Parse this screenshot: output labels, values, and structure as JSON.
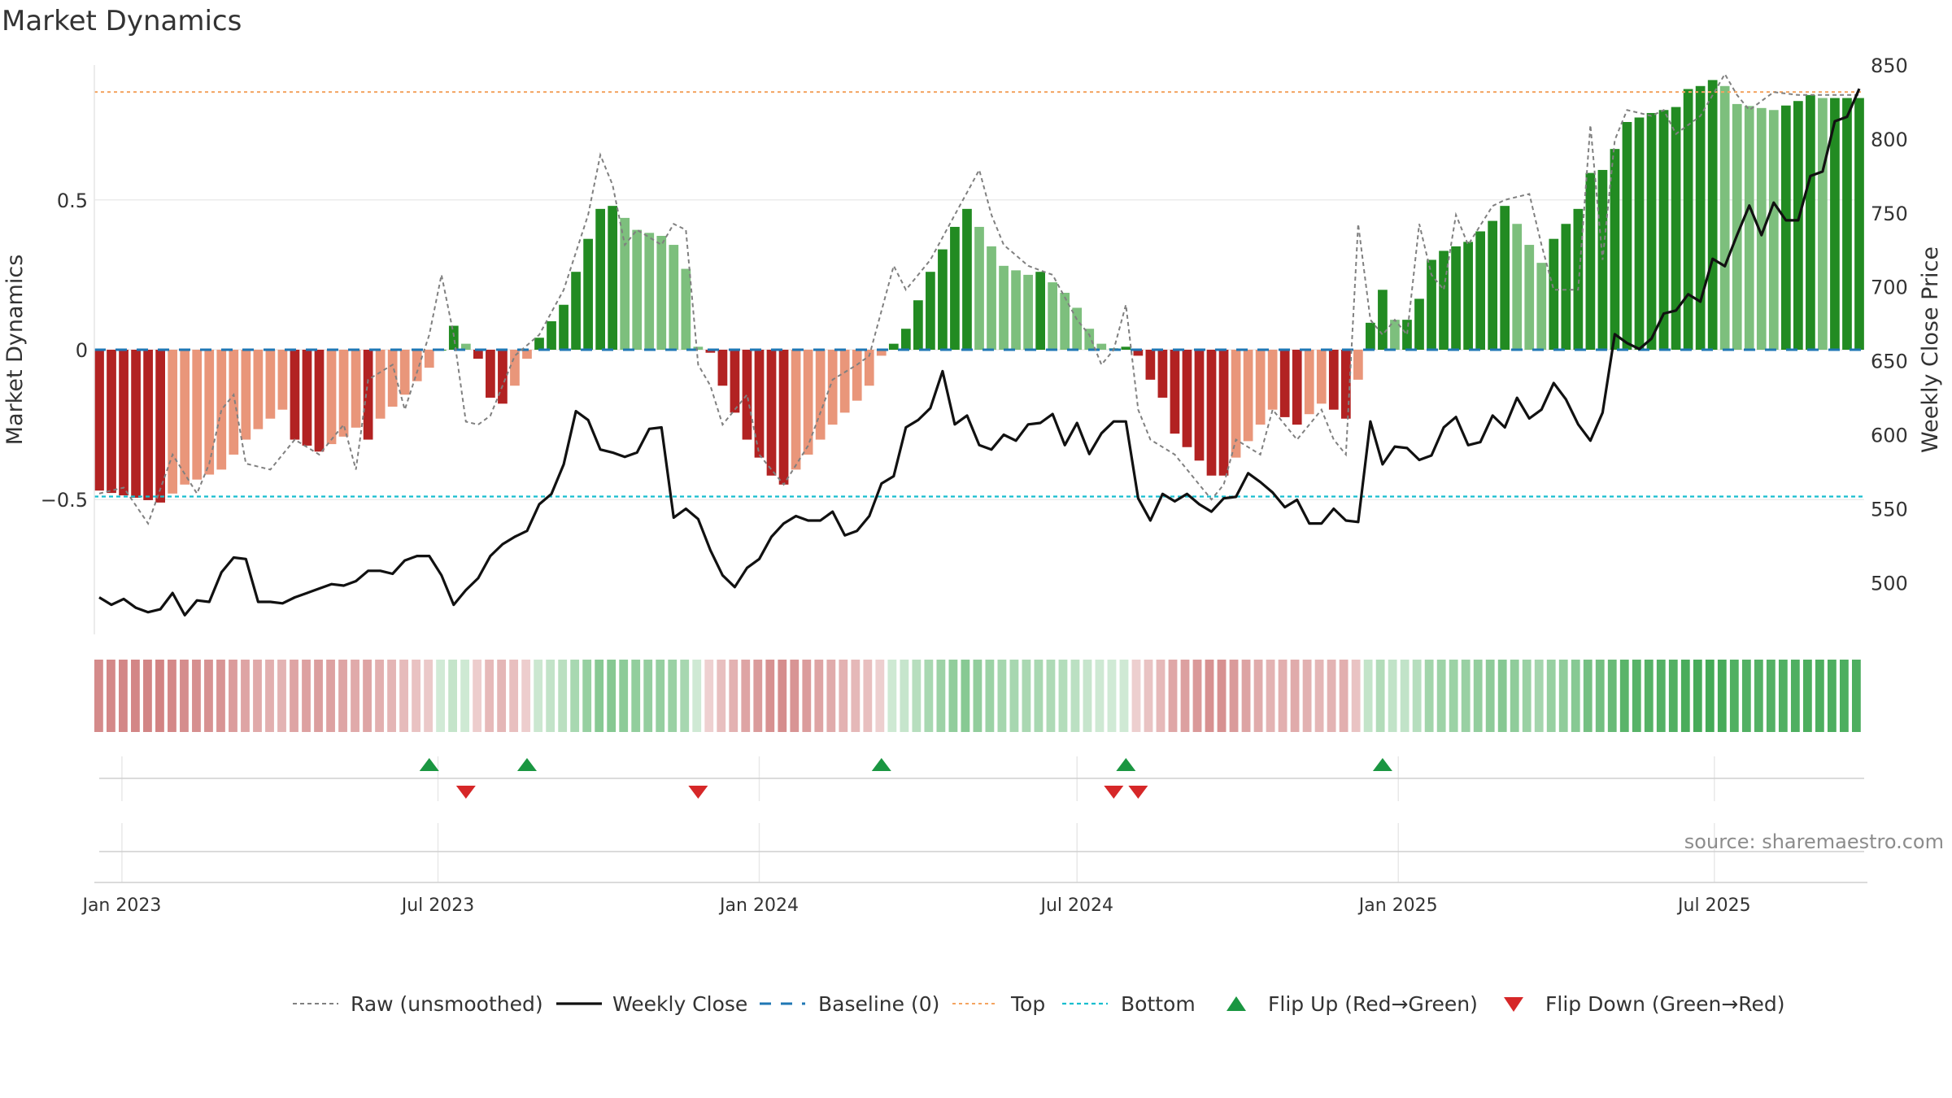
{
  "page_title": "Market Dynamics",
  "source_label": "source: sharemaestro.com",
  "colors": {
    "strong_green": "#228b22",
    "light_green": "#7dbf7d",
    "strong_red": "#b22222",
    "light_red": "#e9967a",
    "raw": "#808080",
    "close": "#111111",
    "baseline": "#1f77b4",
    "top": "#f4a460",
    "bottom": "#17becf",
    "flip_up": "#1a9641",
    "flip_down": "#d62728"
  },
  "chart_data": {
    "type": "bar",
    "title": "Market Dynamics",
    "ylabel": "Market Dynamics",
    "ylabel_right": "Weekly Close Price",
    "ylim": [
      -0.95,
      0.95
    ],
    "ylim_right": [
      465,
      850
    ],
    "yticks": [
      -0.5,
      0,
      0.5
    ],
    "ytick_labels": [
      "−0.5",
      "0",
      "0.5"
    ],
    "yticks_right": [
      500,
      550,
      600,
      650,
      700,
      750,
      800,
      850
    ],
    "ytick_labels_right": [
      "500",
      "550",
      "600",
      "650",
      "700",
      "750",
      "800",
      "850"
    ],
    "top_level": 0.86,
    "bottom_level": -0.49,
    "baseline": 0,
    "start_date": "2022-12-19",
    "weeks": 145,
    "x_ticks": [
      {
        "date": "2023-01-01",
        "label": "Jan 2023"
      },
      {
        "date": "2023-07-01",
        "label": "Jul 2023"
      },
      {
        "date": "2024-01-01",
        "label": "Jan 2024"
      },
      {
        "date": "2024-07-01",
        "label": "Jul 2024"
      },
      {
        "date": "2025-01-01",
        "label": "Jan 2025"
      },
      {
        "date": "2025-07-01",
        "label": "Jul 2025"
      }
    ],
    "dynamics_anchors": [
      [
        0,
        -0.47
      ],
      [
        5,
        -0.51
      ],
      [
        7,
        -0.45
      ],
      [
        10,
        -0.4
      ],
      [
        12,
        -0.3
      ],
      [
        14,
        -0.23
      ],
      [
        15,
        -0.2
      ],
      [
        16,
        -0.3
      ],
      [
        18,
        -0.34
      ],
      [
        20,
        -0.29
      ],
      [
        21,
        -0.26
      ],
      [
        22,
        -0.3
      ],
      [
        23,
        -0.23
      ],
      [
        25,
        -0.15
      ],
      [
        27,
        -0.06
      ],
      [
        28,
        0.0
      ],
      [
        29,
        0.08
      ],
      [
        30,
        0.02
      ],
      [
        31,
        -0.03
      ],
      [
        32,
        -0.16
      ],
      [
        33,
        -0.18
      ],
      [
        34,
        -0.12
      ],
      [
        35,
        -0.03
      ],
      [
        36,
        0.04
      ],
      [
        38,
        0.15
      ],
      [
        40,
        0.37
      ],
      [
        41,
        0.47
      ],
      [
        42,
        0.48
      ],
      [
        44,
        0.4
      ],
      [
        46,
        0.38
      ],
      [
        47,
        0.35
      ],
      [
        48,
        0.27
      ],
      [
        49,
        0.01
      ],
      [
        50,
        -0.01
      ],
      [
        51,
        -0.12
      ],
      [
        53,
        -0.3
      ],
      [
        55,
        -0.42
      ],
      [
        56,
        -0.45
      ],
      [
        58,
        -0.35
      ],
      [
        60,
        -0.25
      ],
      [
        62,
        -0.17
      ],
      [
        63,
        -0.12
      ],
      [
        64,
        -0.02
      ],
      [
        65,
        0.02
      ],
      [
        66,
        0.07
      ],
      [
        68,
        0.26
      ],
      [
        70,
        0.41
      ],
      [
        71,
        0.47
      ],
      [
        72,
        0.41
      ],
      [
        74,
        0.28
      ],
      [
        76,
        0.25
      ],
      [
        77,
        0.26
      ],
      [
        79,
        0.19
      ],
      [
        80,
        0.14
      ],
      [
        81,
        0.07
      ],
      [
        82,
        0.02
      ],
      [
        83,
        0.005
      ],
      [
        84,
        0.01
      ],
      [
        85,
        -0.02
      ],
      [
        86,
        -0.1
      ],
      [
        87,
        -0.16
      ],
      [
        88,
        -0.28
      ],
      [
        90,
        -0.37
      ],
      [
        91,
        -0.42
      ],
      [
        92,
        -0.42
      ],
      [
        93,
        -0.36
      ],
      [
        95,
        -0.25
      ],
      [
        96,
        -0.2
      ],
      [
        98,
        -0.25
      ],
      [
        100,
        -0.18
      ],
      [
        101,
        -0.2
      ],
      [
        102,
        -0.23
      ],
      [
        103,
        -0.1
      ],
      [
        104,
        0.09
      ],
      [
        105,
        0.2
      ],
      [
        106,
        0.1
      ],
      [
        107,
        0.1
      ],
      [
        108,
        0.17
      ],
      [
        109,
        0.3
      ],
      [
        110,
        0.33
      ],
      [
        112,
        0.36
      ],
      [
        114,
        0.43
      ],
      [
        115,
        0.48
      ],
      [
        116,
        0.42
      ],
      [
        117,
        0.35
      ],
      [
        118,
        0.29
      ],
      [
        119,
        0.37
      ],
      [
        121,
        0.47
      ],
      [
        122,
        0.59
      ],
      [
        123,
        0.6
      ],
      [
        124,
        0.67
      ],
      [
        125,
        0.76
      ],
      [
        127,
        0.79
      ],
      [
        128,
        0.8
      ],
      [
        129,
        0.81
      ],
      [
        130,
        0.87
      ],
      [
        131,
        0.88
      ],
      [
        132,
        0.9
      ],
      [
        133,
        0.88
      ],
      [
        134,
        0.82
      ],
      [
        137,
        0.8
      ],
      [
        139,
        0.83
      ],
      [
        140,
        0.85
      ],
      [
        141,
        0.84
      ]
    ],
    "raw_anchors": [
      [
        0,
        -0.48
      ],
      [
        2,
        -0.46
      ],
      [
        4,
        -0.58
      ],
      [
        6,
        -0.35
      ],
      [
        8,
        -0.48
      ],
      [
        9,
        -0.38
      ],
      [
        10,
        -0.2
      ],
      [
        11,
        -0.15
      ],
      [
        12,
        -0.38
      ],
      [
        14,
        -0.4
      ],
      [
        16,
        -0.3
      ],
      [
        18,
        -0.35
      ],
      [
        20,
        -0.25
      ],
      [
        21,
        -0.4
      ],
      [
        22,
        -0.1
      ],
      [
        24,
        -0.05
      ],
      [
        25,
        -0.2
      ],
      [
        27,
        0.05
      ],
      [
        28,
        0.25
      ],
      [
        29,
        0.05
      ],
      [
        30,
        -0.24
      ],
      [
        31,
        -0.25
      ],
      [
        32,
        -0.22
      ],
      [
        33,
        -0.12
      ],
      [
        34,
        -0.02
      ],
      [
        36,
        0.05
      ],
      [
        38,
        0.2
      ],
      [
        40,
        0.45
      ],
      [
        41,
        0.65
      ],
      [
        42,
        0.55
      ],
      [
        43,
        0.35
      ],
      [
        44,
        0.4
      ],
      [
        46,
        0.35
      ],
      [
        47,
        0.42
      ],
      [
        48,
        0.4
      ],
      [
        49,
        -0.05
      ],
      [
        50,
        -0.12
      ],
      [
        51,
        -0.25
      ],
      [
        53,
        -0.15
      ],
      [
        54,
        -0.35
      ],
      [
        56,
        -0.45
      ],
      [
        58,
        -0.32
      ],
      [
        60,
        -0.1
      ],
      [
        62,
        -0.05
      ],
      [
        63,
        -0.02
      ],
      [
        65,
        0.28
      ],
      [
        66,
        0.2
      ],
      [
        68,
        0.3
      ],
      [
        70,
        0.45
      ],
      [
        72,
        0.6
      ],
      [
        73,
        0.45
      ],
      [
        74,
        0.35
      ],
      [
        76,
        0.28
      ],
      [
        78,
        0.25
      ],
      [
        80,
        0.1
      ],
      [
        81,
        0.05
      ],
      [
        82,
        -0.05
      ],
      [
        83,
        0.0
      ],
      [
        84,
        0.15
      ],
      [
        85,
        -0.2
      ],
      [
        86,
        -0.3
      ],
      [
        88,
        -0.35
      ],
      [
        90,
        -0.45
      ],
      [
        91,
        -0.5
      ],
      [
        92,
        -0.45
      ],
      [
        93,
        -0.3
      ],
      [
        95,
        -0.35
      ],
      [
        96,
        -0.2
      ],
      [
        98,
        -0.3
      ],
      [
        100,
        -0.2
      ],
      [
        101,
        -0.3
      ],
      [
        102,
        -0.35
      ],
      [
        103,
        0.42
      ],
      [
        104,
        0.1
      ],
      [
        105,
        0.05
      ],
      [
        106,
        0.1
      ],
      [
        107,
        0.05
      ],
      [
        108,
        0.42
      ],
      [
        109,
        0.25
      ],
      [
        110,
        0.2
      ],
      [
        111,
        0.45
      ],
      [
        112,
        0.35
      ],
      [
        114,
        0.48
      ],
      [
        115,
        0.5
      ],
      [
        117,
        0.52
      ],
      [
        118,
        0.35
      ],
      [
        119,
        0.2
      ],
      [
        121,
        0.2
      ],
      [
        122,
        0.75
      ],
      [
        123,
        0.3
      ],
      [
        124,
        0.7
      ],
      [
        125,
        0.8
      ],
      [
        127,
        0.78
      ],
      [
        128,
        0.8
      ],
      [
        129,
        0.72
      ],
      [
        131,
        0.78
      ],
      [
        132,
        0.85
      ],
      [
        133,
        0.92
      ],
      [
        134,
        0.85
      ],
      [
        135,
        0.8
      ],
      [
        137,
        0.86
      ],
      [
        139,
        0.85
      ],
      [
        141,
        0.85
      ]
    ],
    "close_anchors": [
      [
        0,
        490
      ],
      [
        1,
        485
      ],
      [
        2,
        489
      ],
      [
        3,
        483
      ],
      [
        4,
        480
      ],
      [
        5,
        482
      ],
      [
        6,
        493
      ],
      [
        7,
        478
      ],
      [
        8,
        488
      ],
      [
        9,
        487
      ],
      [
        10,
        507
      ],
      [
        11,
        517
      ],
      [
        12,
        516
      ],
      [
        13,
        487
      ],
      [
        14,
        487
      ],
      [
        15,
        486
      ],
      [
        16,
        490
      ],
      [
        18,
        496
      ],
      [
        19,
        499
      ],
      [
        20,
        498
      ],
      [
        21,
        501
      ],
      [
        22,
        508
      ],
      [
        23,
        508
      ],
      [
        24,
        506
      ],
      [
        25,
        515
      ],
      [
        26,
        518
      ],
      [
        27,
        518
      ],
      [
        28,
        505
      ],
      [
        29,
        485
      ],
      [
        30,
        495
      ],
      [
        31,
        503
      ],
      [
        32,
        518
      ],
      [
        33,
        526
      ],
      [
        34,
        531
      ],
      [
        35,
        535
      ],
      [
        36,
        553
      ],
      [
        37,
        560
      ],
      [
        38,
        580
      ],
      [
        39,
        616
      ],
      [
        40,
        610
      ],
      [
        41,
        590
      ],
      [
        42,
        588
      ],
      [
        43,
        585
      ],
      [
        44,
        588
      ],
      [
        45,
        604
      ],
      [
        46,
        605
      ],
      [
        47,
        544
      ],
      [
        48,
        550
      ],
      [
        49,
        543
      ],
      [
        50,
        522
      ],
      [
        51,
        505
      ],
      [
        52,
        497
      ],
      [
        53,
        510
      ],
      [
        54,
        516
      ],
      [
        55,
        531
      ],
      [
        56,
        540
      ],
      [
        57,
        545
      ],
      [
        58,
        542
      ],
      [
        59,
        542
      ],
      [
        60,
        548
      ],
      [
        61,
        532
      ],
      [
        62,
        535
      ],
      [
        63,
        545
      ],
      [
        64,
        567
      ],
      [
        65,
        572
      ],
      [
        66,
        605
      ],
      [
        67,
        610
      ],
      [
        68,
        618
      ],
      [
        69,
        643
      ],
      [
        70,
        607
      ],
      [
        71,
        613
      ],
      [
        72,
        593
      ],
      [
        73,
        590
      ],
      [
        74,
        600
      ],
      [
        75,
        596
      ],
      [
        76,
        607
      ],
      [
        77,
        608
      ],
      [
        78,
        614
      ],
      [
        79,
        593
      ],
      [
        80,
        608
      ],
      [
        81,
        587
      ],
      [
        82,
        601
      ],
      [
        83,
        609
      ],
      [
        84,
        609
      ],
      [
        85,
        557
      ],
      [
        86,
        542
      ],
      [
        87,
        560
      ],
      [
        88,
        555
      ],
      [
        89,
        560
      ],
      [
        90,
        553
      ],
      [
        91,
        548
      ],
      [
        92,
        557
      ],
      [
        93,
        558
      ],
      [
        94,
        574
      ],
      [
        95,
        568
      ],
      [
        96,
        561
      ],
      [
        97,
        551
      ],
      [
        98,
        556
      ],
      [
        99,
        540
      ],
      [
        100,
        540
      ],
      [
        101,
        550
      ],
      [
        102,
        542
      ],
      [
        103,
        541
      ],
      [
        104,
        609
      ],
      [
        105,
        580
      ],
      [
        106,
        592
      ],
      [
        107,
        591
      ],
      [
        108,
        583
      ],
      [
        109,
        586
      ],
      [
        110,
        605
      ],
      [
        111,
        612
      ],
      [
        112,
        593
      ],
      [
        113,
        595
      ],
      [
        114,
        613
      ],
      [
        115,
        605
      ],
      [
        116,
        625
      ],
      [
        117,
        611
      ],
      [
        118,
        617
      ],
      [
        119,
        635
      ],
      [
        120,
        624
      ],
      [
        121,
        607
      ],
      [
        122,
        596
      ],
      [
        123,
        615
      ],
      [
        124,
        668
      ],
      [
        125,
        662
      ],
      [
        126,
        658
      ],
      [
        127,
        665
      ],
      [
        128,
        682
      ],
      [
        129,
        684
      ],
      [
        130,
        695
      ],
      [
        131,
        690
      ],
      [
        132,
        719
      ],
      [
        133,
        714
      ],
      [
        134,
        735
      ],
      [
        135,
        755
      ],
      [
        136,
        735
      ],
      [
        137,
        757
      ],
      [
        138,
        745
      ],
      [
        139,
        745
      ],
      [
        140,
        775
      ],
      [
        141,
        778
      ],
      [
        142,
        812
      ],
      [
        143,
        815
      ],
      [
        144,
        834
      ]
    ],
    "flip_up_weeks": [
      27,
      35,
      64,
      84,
      105
    ],
    "flip_down_weeks": [
      30,
      49,
      83,
      85
    ],
    "legend": {
      "raw": "Raw (unsmoothed)",
      "close": "Weekly Close",
      "baseline": "Baseline (0)",
      "top": "Top",
      "bottom": "Bottom",
      "flip_up": "Flip Up (Red→Green)",
      "flip_down": "Flip Down (Green→Red)"
    },
    "legend_position": "bottom-center"
  }
}
